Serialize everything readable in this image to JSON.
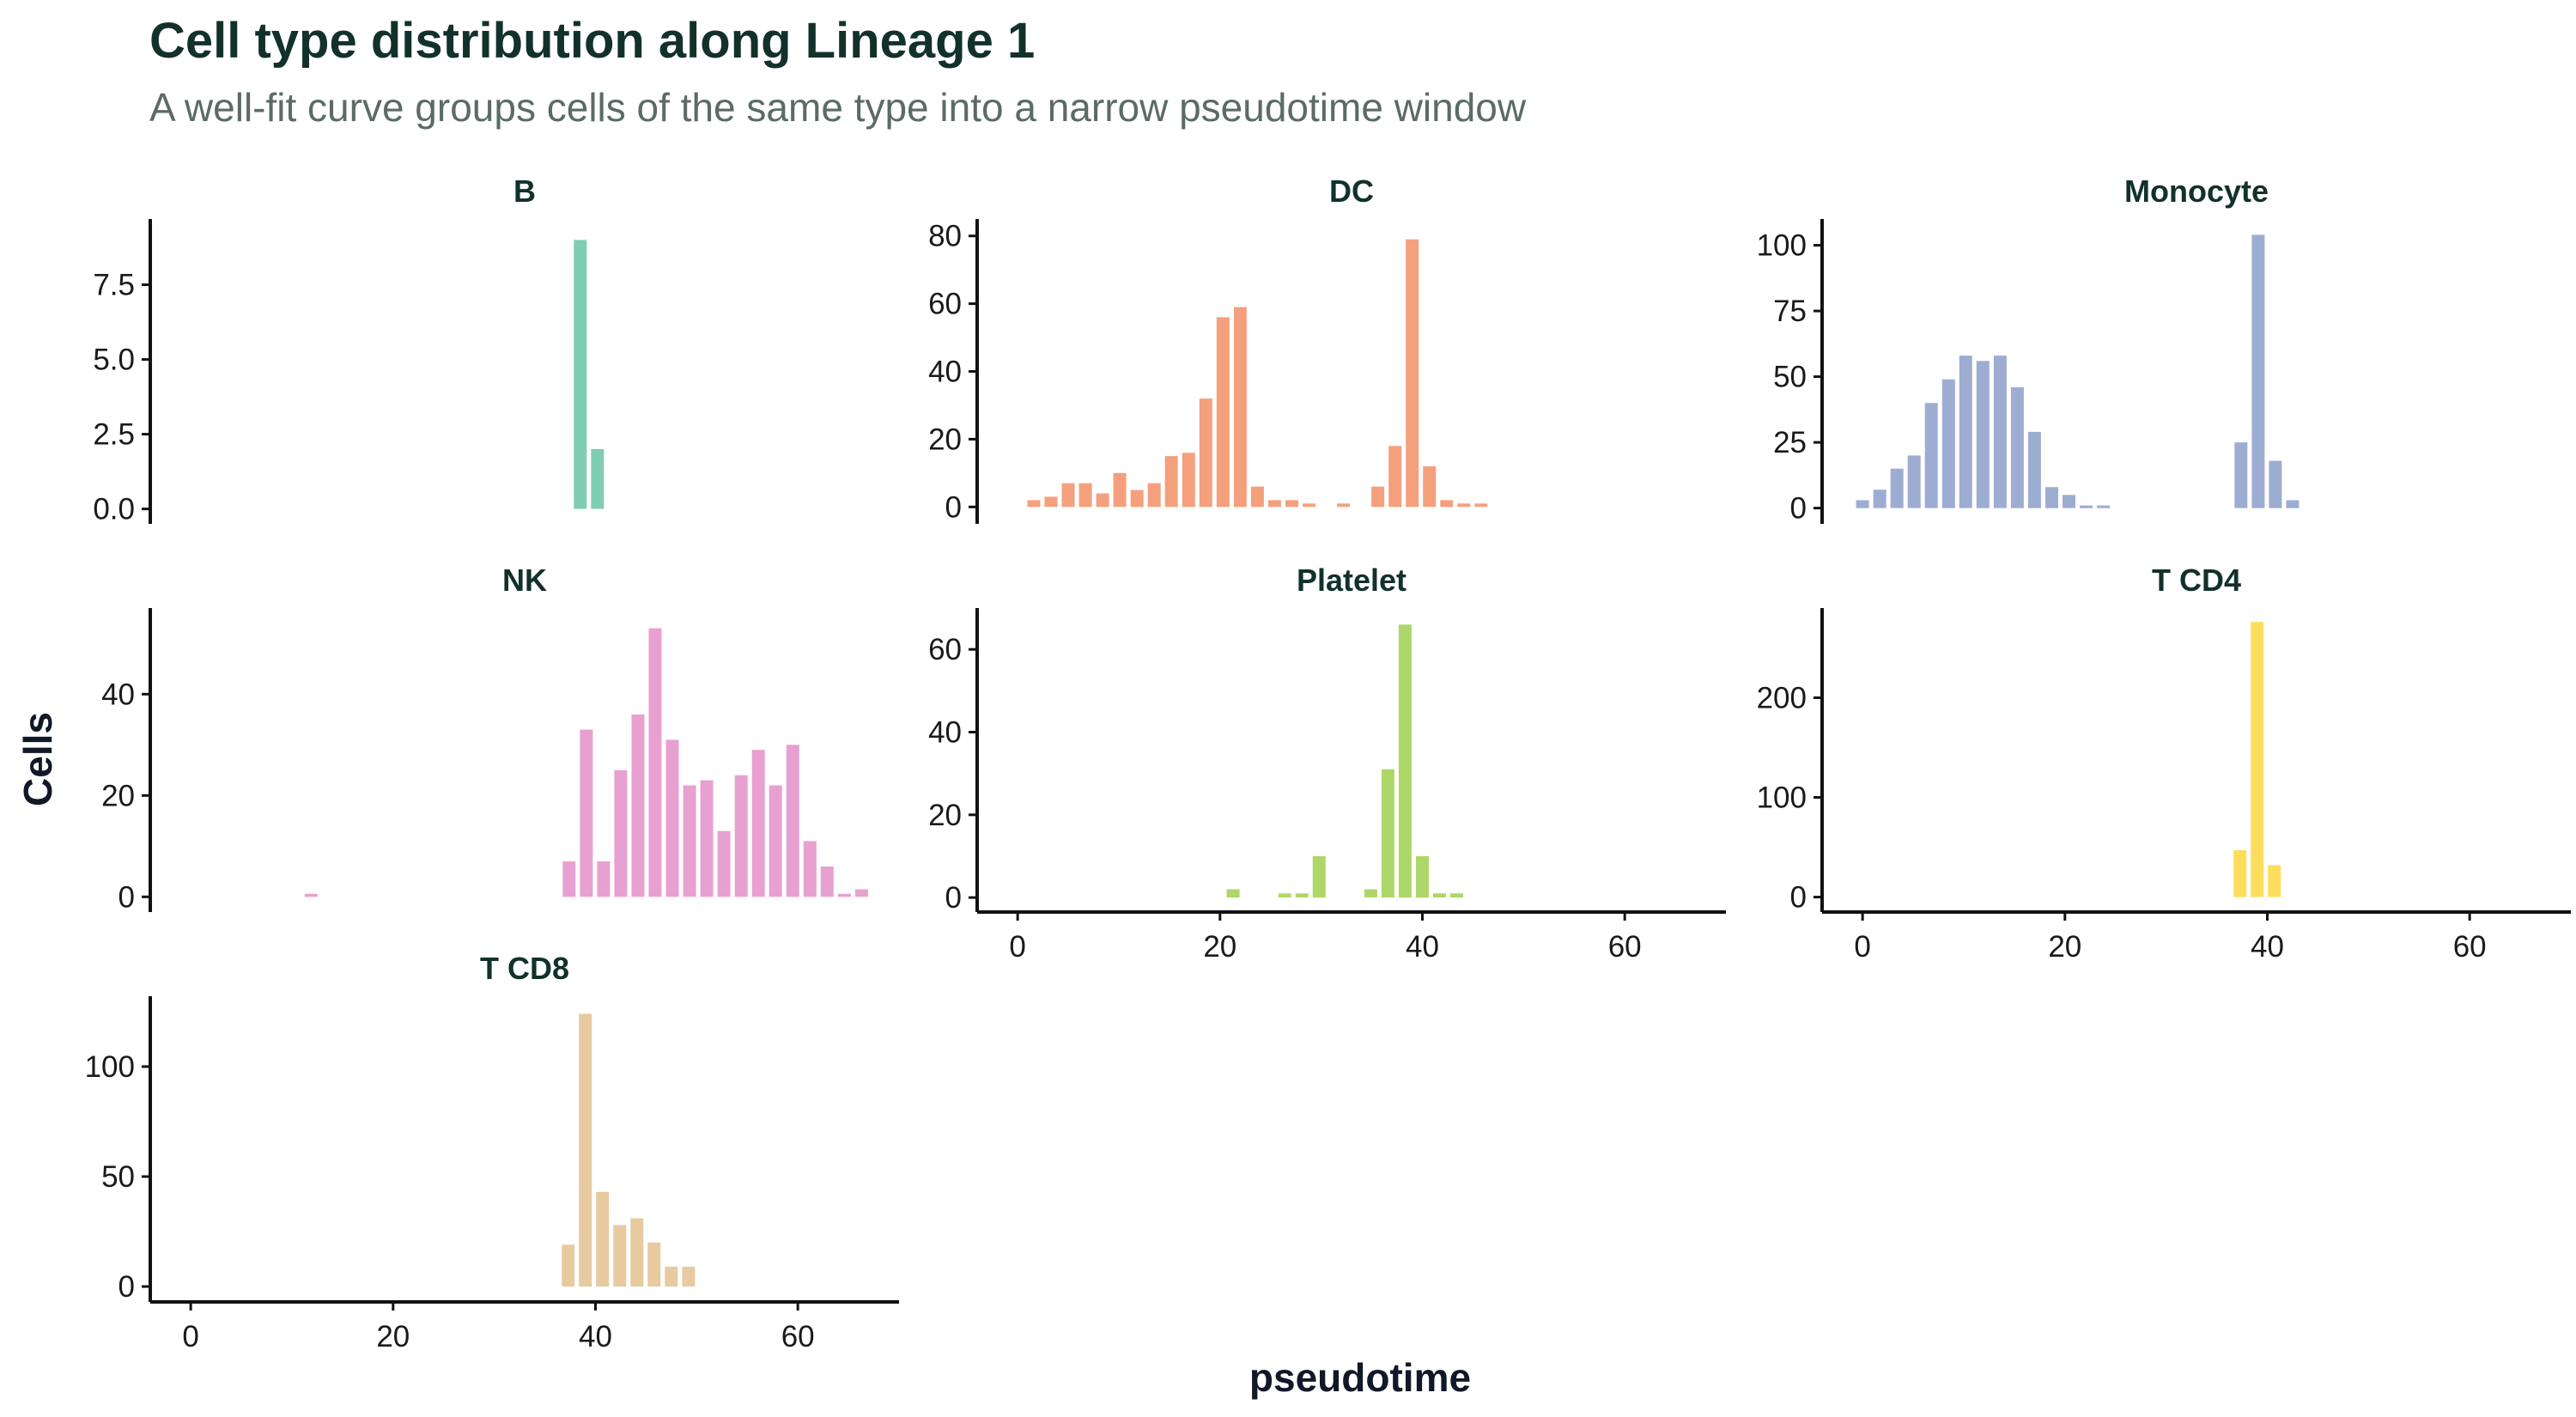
{
  "title": "Cell type distribution along Lineage 1",
  "subtitle": "A well-fit curve groups cells of the same type into a narrow pseudotime window",
  "chart_data": {
    "type": "bar",
    "xlabel": "pseudotime",
    "ylabel": "Cells",
    "xlim": [
      -4,
      70
    ],
    "x_ticks": [
      0,
      20,
      40,
      60
    ],
    "bin_width": 1.7,
    "panels": [
      {
        "name": "B",
        "color": "#7fcdb2",
        "ylim": [
          -0.5,
          9.7
        ],
        "y_ticks": [
          0.0,
          2.5,
          5.0,
          7.5
        ],
        "y_tick_labels": [
          "0.0",
          "2.5",
          "5.0",
          "7.5"
        ],
        "bins": [
          [
            38.5,
            9
          ],
          [
            40.2,
            2
          ]
        ]
      },
      {
        "name": "DC",
        "color": "#f5a07d",
        "ylim": [
          -5,
          85
        ],
        "y_ticks": [
          0,
          20,
          40,
          60,
          80
        ],
        "y_tick_labels": [
          "0",
          "20",
          "40",
          "60",
          "80"
        ],
        "bins": [
          [
            1.6,
            2
          ],
          [
            3.3,
            3
          ],
          [
            5.0,
            7
          ],
          [
            6.7,
            7
          ],
          [
            8.4,
            4
          ],
          [
            10.1,
            10
          ],
          [
            11.8,
            5
          ],
          [
            13.5,
            7
          ],
          [
            15.2,
            15
          ],
          [
            16.9,
            16
          ],
          [
            18.6,
            32
          ],
          [
            20.3,
            56
          ],
          [
            22.0,
            59
          ],
          [
            23.7,
            6
          ],
          [
            25.4,
            2
          ],
          [
            27.1,
            2
          ],
          [
            28.8,
            1
          ],
          [
            32.2,
            1
          ],
          [
            35.6,
            6
          ],
          [
            37.3,
            18
          ],
          [
            39.0,
            79
          ],
          [
            40.7,
            12
          ],
          [
            42.4,
            2
          ],
          [
            44.1,
            1
          ],
          [
            45.8,
            1
          ]
        ]
      },
      {
        "name": "Monocyte",
        "color": "#9dadd2",
        "ylim": [
          -6,
          110
        ],
        "y_ticks": [
          0,
          25,
          50,
          75,
          100
        ],
        "y_tick_labels": [
          "0",
          "25",
          "50",
          "75",
          "100"
        ],
        "bins": [
          [
            0.0,
            3
          ],
          [
            1.7,
            7
          ],
          [
            3.4,
            15
          ],
          [
            5.1,
            20
          ],
          [
            6.8,
            40
          ],
          [
            8.5,
            49
          ],
          [
            10.2,
            58
          ],
          [
            11.9,
            56
          ],
          [
            13.6,
            58
          ],
          [
            15.3,
            46
          ],
          [
            17.0,
            29
          ],
          [
            18.7,
            8
          ],
          [
            20.4,
            5
          ],
          [
            22.1,
            1
          ],
          [
            23.8,
            1
          ],
          [
            37.4,
            25
          ],
          [
            39.1,
            104
          ],
          [
            40.8,
            18
          ],
          [
            42.5,
            3
          ]
        ]
      },
      {
        "name": "NK",
        "color": "#e8a0d1",
        "ylim": [
          -3,
          57
        ],
        "y_ticks": [
          0,
          20,
          40
        ],
        "y_tick_labels": [
          "0",
          "20",
          "40"
        ],
        "bins": [
          [
            11.9,
            0.6
          ],
          [
            37.4,
            7
          ],
          [
            39.1,
            33
          ],
          [
            40.8,
            7
          ],
          [
            42.5,
            25
          ],
          [
            44.2,
            36
          ],
          [
            45.9,
            53
          ],
          [
            47.6,
            31
          ],
          [
            49.3,
            22
          ],
          [
            51.0,
            23
          ],
          [
            52.7,
            13
          ],
          [
            54.4,
            24
          ],
          [
            56.1,
            29
          ],
          [
            57.8,
            22
          ],
          [
            59.5,
            30
          ],
          [
            61.2,
            11
          ],
          [
            62.9,
            6
          ],
          [
            64.6,
            0.6
          ],
          [
            66.3,
            1.5
          ]
        ]
      },
      {
        "name": "Platelet",
        "color": "#add768",
        "ylim": [
          -3.5,
          70
        ],
        "y_ticks": [
          0,
          20,
          40,
          60
        ],
        "y_tick_labels": [
          "0",
          "20",
          "40",
          "60"
        ],
        "bins": [
          [
            21.3,
            2
          ],
          [
            26.4,
            1
          ],
          [
            28.1,
            1
          ],
          [
            29.8,
            10
          ],
          [
            34.9,
            2
          ],
          [
            36.6,
            31
          ],
          [
            38.3,
            66
          ],
          [
            40.0,
            10
          ],
          [
            41.7,
            1
          ],
          [
            43.4,
            1
          ]
        ]
      },
      {
        "name": "T CD4",
        "color": "#fedd5c",
        "ylim": [
          -15,
          290
        ],
        "y_ticks": [
          0,
          100,
          200
        ],
        "y_tick_labels": [
          "0",
          "100",
          "200"
        ],
        "bins": [
          [
            37.3,
            47
          ],
          [
            39.0,
            276
          ],
          [
            40.7,
            32
          ]
        ]
      },
      {
        "name": "T CD8",
        "color": "#e7ca9f",
        "ylim": [
          -7,
          132
        ],
        "y_ticks": [
          0,
          50,
          100
        ],
        "y_tick_labels": [
          "0",
          "50",
          "100"
        ],
        "bins": [
          [
            37.3,
            19
          ],
          [
            39.0,
            124
          ],
          [
            40.7,
            43
          ],
          [
            42.4,
            28
          ],
          [
            44.1,
            31
          ],
          [
            45.8,
            20
          ],
          [
            47.5,
            9
          ],
          [
            49.2,
            9
          ]
        ]
      }
    ]
  }
}
